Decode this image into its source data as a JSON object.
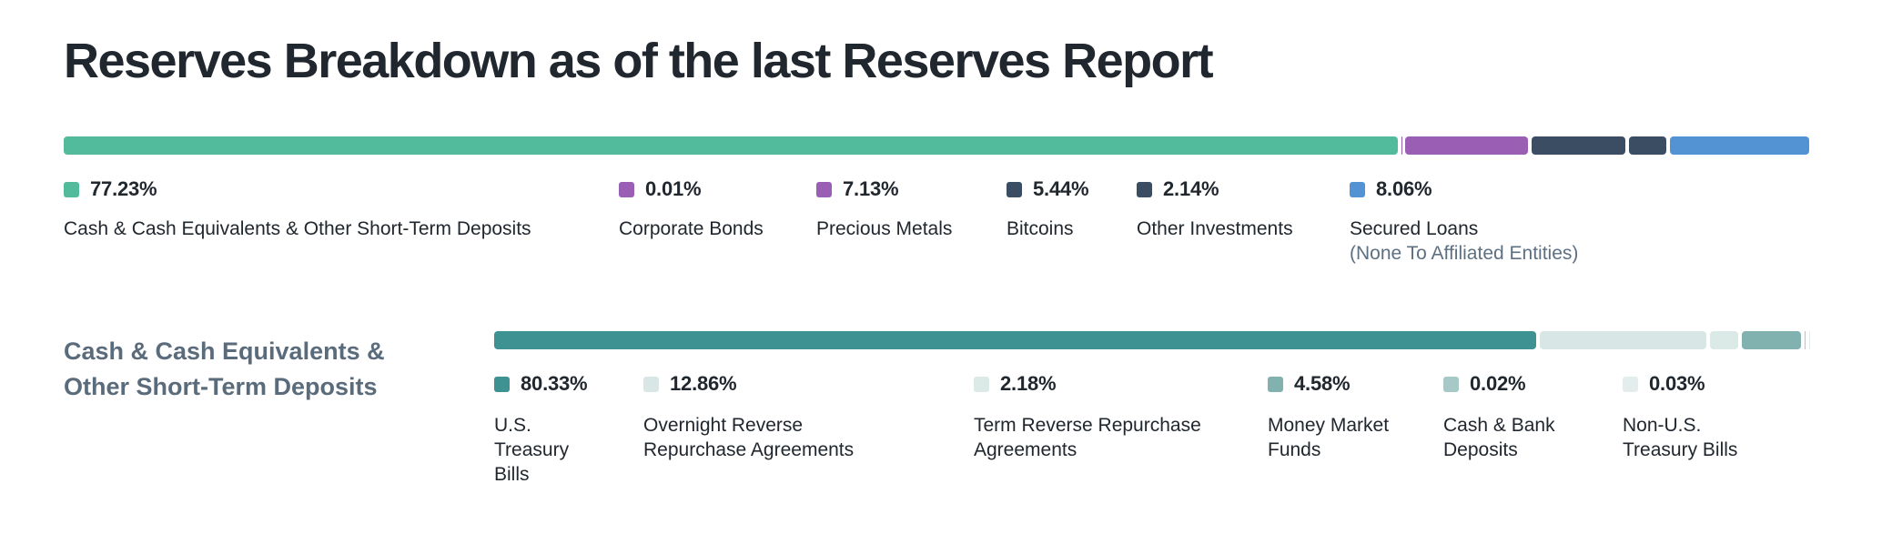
{
  "page": {
    "title": "Reserves Breakdown as of the last Reserves Report"
  },
  "overall": {
    "segments": [
      {
        "label": "Cash & Cash Equivalents & Other Short-Term Deposits",
        "pct": "77.23%",
        "value": 77.23,
        "color": "#52bb9c"
      },
      {
        "label": "Corporate Bonds",
        "pct": "0.01%",
        "value": 0.01,
        "color": "#9a5fb5"
      },
      {
        "label": "Precious Metals",
        "pct": "7.13%",
        "value": 7.13,
        "color": "#9a5fb5"
      },
      {
        "label": "Bitcoins",
        "pct": "5.44%",
        "value": 5.44,
        "color": "#3b4d62"
      },
      {
        "label": "Other Investments",
        "pct": "2.14%",
        "value": 2.14,
        "color": "#3b4d62"
      },
      {
        "label": "Secured Loans",
        "sublabel": "(None To Affiliated Entities)",
        "pct": "8.06%",
        "value": 8.06,
        "color": "#5393d3"
      }
    ]
  },
  "cash_section": {
    "heading": "Cash & Cash Equivalents & Other Short-Term Deposits",
    "segments": [
      {
        "label": "U.S. Treasury Bills",
        "pct": "80.33%",
        "value": 80.33,
        "color": "#3f9292"
      },
      {
        "label": "Overnight Reverse Repurchase Agreements",
        "pct": "12.86%",
        "value": 12.86,
        "color": "#d8e7e5"
      },
      {
        "label": "Term Reverse Repurchase Agreements",
        "pct": "2.18%",
        "value": 2.18,
        "color": "#dbe9e7"
      },
      {
        "label": "Money Market Funds",
        "pct": "4.58%",
        "value": 4.58,
        "color": "#82b2b0"
      },
      {
        "label": "Cash & Bank Deposits",
        "pct": "0.02%",
        "value": 0.02,
        "color": "#a6c9c7"
      },
      {
        "label": "Non-U.S. Treasury Bills",
        "pct": "0.03%",
        "value": 0.03,
        "color": "#e3eeec"
      }
    ]
  },
  "chart_data": [
    {
      "type": "bar",
      "subtype": "stacked-horizontal-single-bar",
      "title": "Reserves Breakdown as of the last Reserves Report",
      "unit": "%",
      "legend_position": "below-bar",
      "grid": false,
      "series": [
        {
          "name": "Cash & Cash Equivalents & Other Short-Term Deposits",
          "values": [
            77.23
          ],
          "color": "#52bb9c"
        },
        {
          "name": "Corporate Bonds",
          "values": [
            0.01
          ],
          "color": "#9a5fb5"
        },
        {
          "name": "Precious Metals",
          "values": [
            7.13
          ],
          "color": "#9a5fb5"
        },
        {
          "name": "Bitcoins",
          "values": [
            5.44
          ],
          "color": "#3b4d62"
        },
        {
          "name": "Other Investments",
          "values": [
            2.14
          ],
          "color": "#3b4d62"
        },
        {
          "name": "Secured Loans (None To Affiliated Entities)",
          "values": [
            8.06
          ],
          "color": "#5393d3"
        }
      ]
    },
    {
      "type": "bar",
      "subtype": "stacked-horizontal-single-bar",
      "title": "Cash & Cash Equivalents & Other Short-Term Deposits",
      "unit": "%",
      "legend_position": "below-bar",
      "grid": false,
      "series": [
        {
          "name": "U.S. Treasury Bills",
          "values": [
            80.33
          ],
          "color": "#3f9292"
        },
        {
          "name": "Overnight Reverse Repurchase Agreements",
          "values": [
            12.86
          ],
          "color": "#d8e7e5"
        },
        {
          "name": "Term Reverse Repurchase Agreements",
          "values": [
            2.18
          ],
          "color": "#dbe9e7"
        },
        {
          "name": "Money Market Funds",
          "values": [
            4.58
          ],
          "color": "#82b2b0"
        },
        {
          "name": "Cash & Bank Deposits",
          "values": [
            0.02
          ],
          "color": "#a6c9c7"
        },
        {
          "name": "Non-U.S. Treasury Bills",
          "values": [
            0.03
          ],
          "color": "#e3eeec"
        }
      ]
    }
  ]
}
